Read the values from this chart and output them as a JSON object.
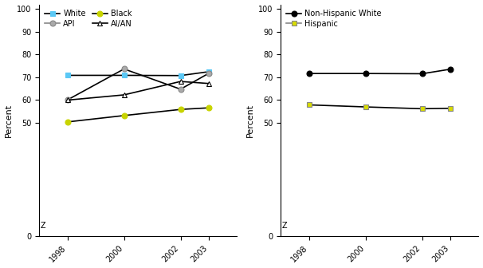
{
  "years": [
    1998,
    2000,
    2002,
    2003
  ],
  "race": {
    "White": [
      70.8,
      70.8,
      70.7,
      72.4
    ],
    "Black": [
      50.3,
      53.1,
      55.8,
      56.5
    ],
    "API": [
      60.0,
      73.6,
      64.7,
      71.7
    ],
    "AI/AN": [
      59.9,
      62.2,
      68.1,
      67.2
    ]
  },
  "ethnicity": {
    "Non-Hispanic White": [
      71.6,
      71.6,
      71.5,
      73.5
    ],
    "Hispanic": [
      57.8,
      56.9,
      56.1,
      56.3
    ]
  },
  "line_colors": {
    "White": "#000000",
    "Black": "#000000",
    "API": "#000000",
    "AI/AN": "#000000",
    "Non-Hispanic White": "#000000",
    "Hispanic": "#000000"
  },
  "marker_types": {
    "White": "s",
    "Black": "o",
    "API": "o",
    "AI/AN": "^",
    "Non-Hispanic White": "o",
    "Hispanic": "s"
  },
  "marker_facecolors": {
    "White": "#5bc8f5",
    "Black": "#c8d400",
    "API": "#aaaaaa",
    "AI/AN": "#ffffff",
    "Non-Hispanic White": "#000000",
    "Hispanic": "#d8dc00"
  },
  "marker_edgecolors": {
    "White": "#5bc8f5",
    "Black": "#c8d400",
    "API": "#888888",
    "AI/AN": "#000000",
    "Non-Hispanic White": "#000000",
    "Hispanic": "#888888"
  },
  "yticks": [
    0,
    50,
    60,
    70,
    80,
    90,
    100
  ],
  "ylim": [
    0,
    102
  ],
  "xlim": [
    1997.0,
    2004.0
  ],
  "ylabel": "Percent",
  "z_text": "Z",
  "background_color": "#ffffff"
}
